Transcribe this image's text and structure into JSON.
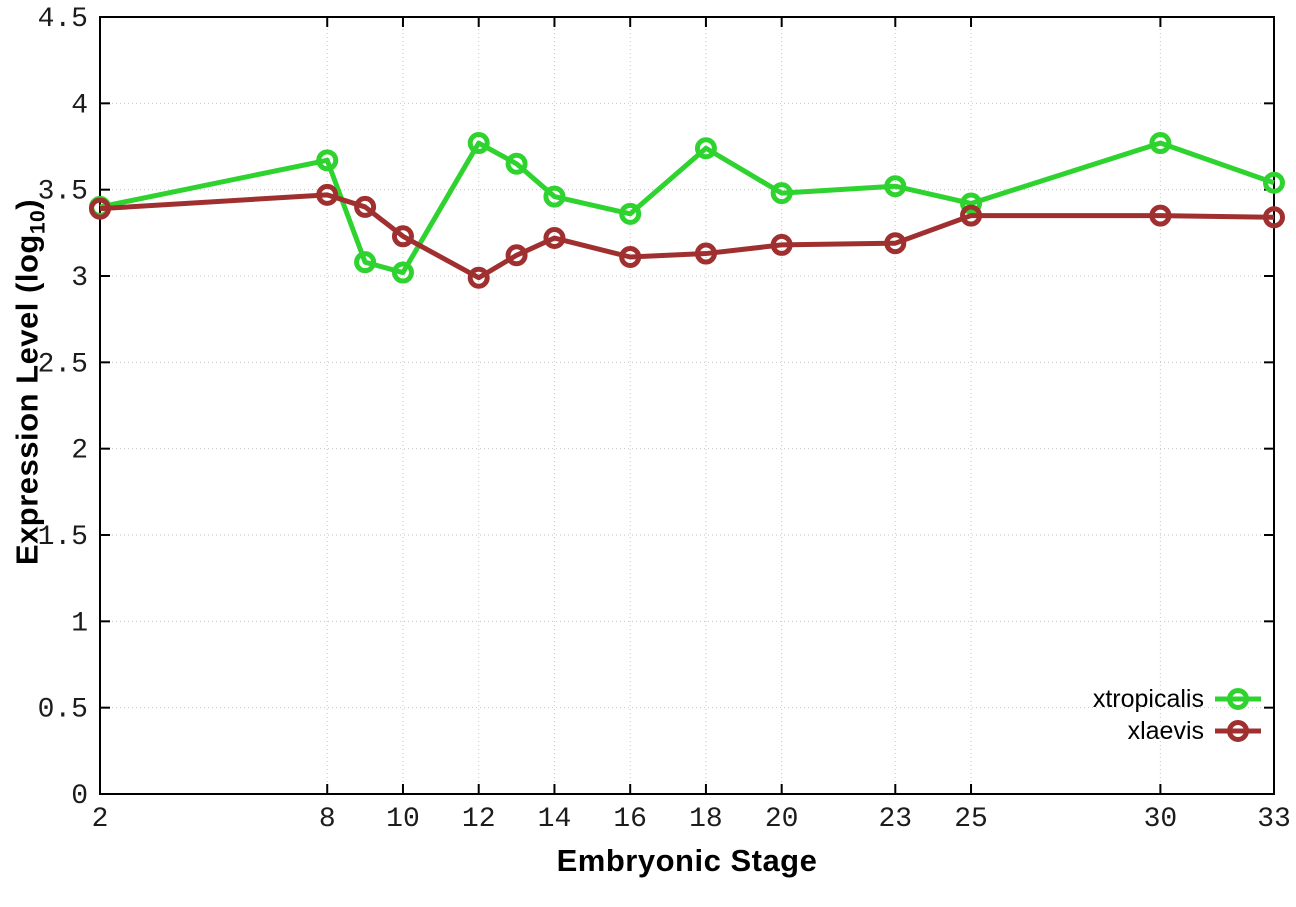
{
  "chart_data": {
    "type": "line",
    "x": [
      2,
      8,
      9,
      10,
      12,
      13,
      14,
      16,
      18,
      20,
      23,
      25,
      30,
      33
    ],
    "series": [
      {
        "name": "xtropicalis",
        "color": "#2fd32f",
        "values": [
          3.4,
          3.67,
          3.08,
          3.02,
          3.77,
          3.65,
          3.46,
          3.36,
          3.74,
          3.48,
          3.52,
          3.42,
          3.77,
          3.54
        ]
      },
      {
        "name": "xlaevis",
        "color": "#a03030",
        "values": [
          3.39,
          3.47,
          3.4,
          3.23,
          2.99,
          3.12,
          3.22,
          3.11,
          3.13,
          3.18,
          3.19,
          3.35,
          3.35,
          3.34
        ]
      }
    ],
    "title": "",
    "xlabel": "Embryonic Stage",
    "ylabel": "Expression Level (log10)",
    "ylabel_parts": {
      "prefix": "Expression Level (log",
      "sub": "10",
      "suffix": ")"
    },
    "xlim": [
      2,
      33
    ],
    "ylim": [
      0,
      4.5
    ],
    "xticks": [
      2,
      8,
      10,
      12,
      14,
      16,
      18,
      20,
      23,
      25,
      30,
      33
    ],
    "yticks": [
      0,
      0.5,
      1,
      1.5,
      2,
      2.5,
      3,
      3.5,
      4,
      4.5
    ],
    "grid": true,
    "legend_position": "bottom-right",
    "styling": {
      "grid_color": "#c6c6c6",
      "border_color": "#000000",
      "background": "#ffffff",
      "line_width": 5,
      "marker": "open-circle",
      "marker_radius": 8.5
    }
  }
}
